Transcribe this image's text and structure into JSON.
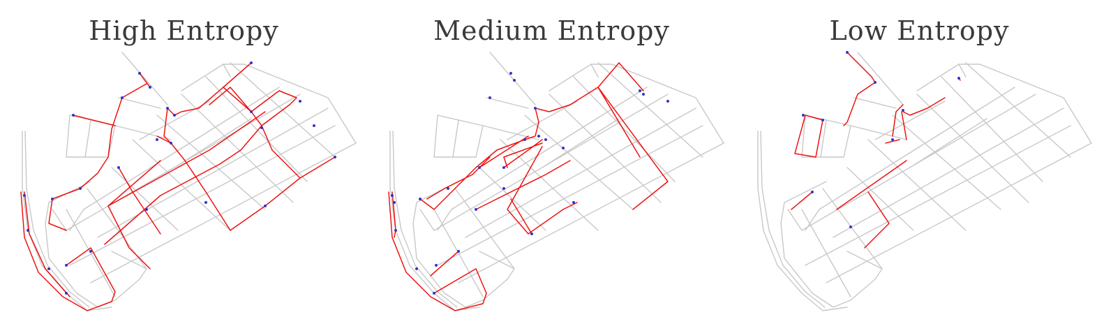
{
  "colors": {
    "road": "#c8c8c8",
    "route": "#ee1111",
    "node": "#3333cc",
    "title": "#3a3a3a"
  },
  "panels": [
    {
      "title": "High Entropy",
      "entropy_level": "high"
    },
    {
      "title": "Medium Entropy",
      "entropy_level": "medium"
    },
    {
      "title": "Low Entropy",
      "entropy_level": "low"
    }
  ]
}
